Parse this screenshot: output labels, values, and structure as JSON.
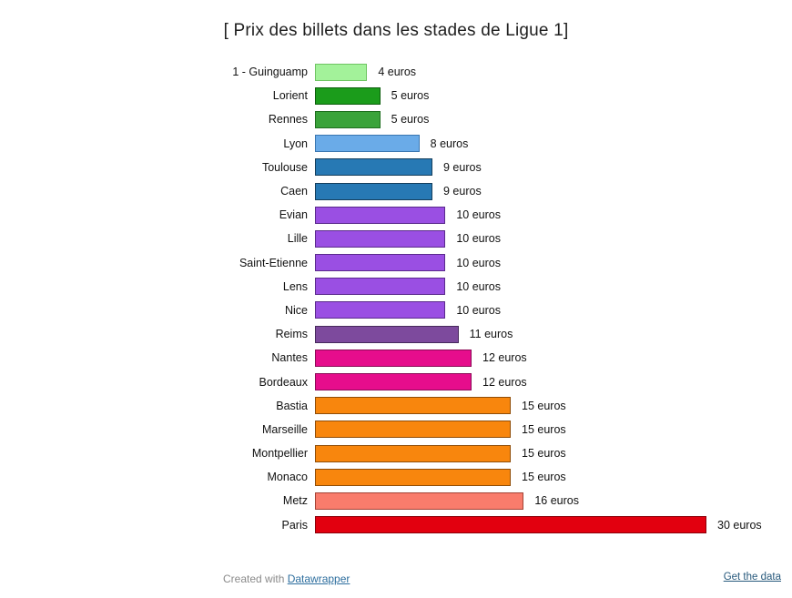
{
  "title": "[ Prix des billets dans les stades de Ligue 1]",
  "footer": {
    "created_with": "Created with ",
    "datawrapper_link": "Datawrapper",
    "get_data_link": "Get the data"
  },
  "chart_data": {
    "type": "bar",
    "orientation": "horizontal",
    "title": "[ Prix des billets dans les stades de Ligue 1]",
    "unit": "euros",
    "xlim": [
      0,
      30
    ],
    "grid": false,
    "legend": "none",
    "categories": [
      "1 - Guinguamp",
      "Lorient",
      "Rennes",
      "Lyon",
      "Toulouse",
      "Caen",
      "Evian",
      "Lille",
      "Saint-Etienne",
      "Lens",
      "Nice",
      "Reims",
      "Nantes",
      "Bordeaux",
      "Bastia",
      "Marseille",
      "Montpellier",
      "Monaco",
      "Metz",
      "Paris"
    ],
    "values": [
      4,
      5,
      5,
      8,
      9,
      9,
      10,
      10,
      10,
      10,
      10,
      11,
      12,
      12,
      15,
      15,
      15,
      15,
      16,
      30
    ],
    "value_labels": [
      "4 euros",
      "5 euros",
      "5 euros",
      "8 euros",
      "9 euros",
      "9 euros",
      "10 euros",
      "10 euros",
      "10 euros",
      "10 euros",
      "10 euros",
      "11 euros",
      "12 euros",
      "12 euros",
      "15 euros",
      "15 euros",
      "15 euros",
      "15 euros",
      "16 euros",
      "30 euros"
    ],
    "bar_fill_colors": [
      "#a3f29a",
      "#1b9c1b",
      "#3aa33a",
      "#6aabe8",
      "#2779b4",
      "#2779b4",
      "#9a4fe3",
      "#9a4fe3",
      "#9a4fe3",
      "#9a4fe3",
      "#9a4fe3",
      "#7d4a9d",
      "#e60d8c",
      "#e60d8c",
      "#f8860d",
      "#f8860d",
      "#f8860d",
      "#f8860d",
      "#f97c6c",
      "#e2000f"
    ],
    "bar_border_colors": [
      "#6fc463",
      "#0b5e0b",
      "#1e6e1e",
      "#3a76b0",
      "#143e5c",
      "#143e5c",
      "#5a2a8c",
      "#5a2a8c",
      "#5a2a8c",
      "#5a2a8c",
      "#5a2a8c",
      "#472a5c",
      "#8a0a56",
      "#8a0a56",
      "#8f4d08",
      "#8f4d08",
      "#8f4d08",
      "#8f4d08",
      "#a34335",
      "#8c0009"
    ]
  }
}
